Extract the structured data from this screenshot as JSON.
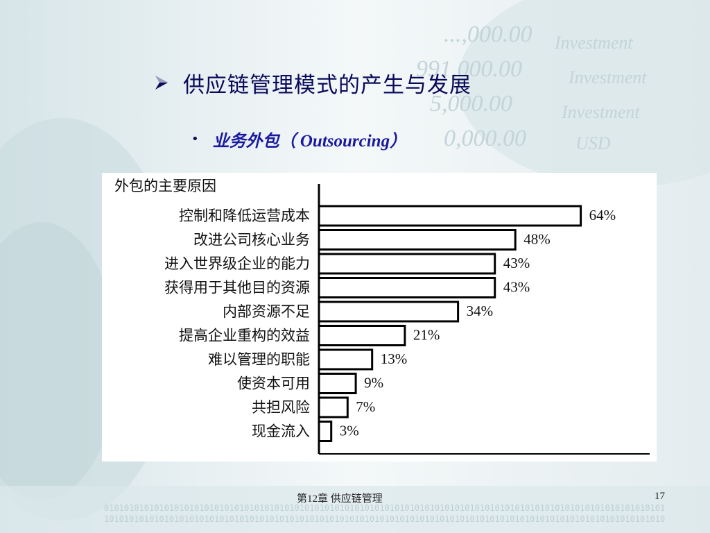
{
  "slide": {
    "title": "供应链管理模式的产生与发展",
    "bullet_cn": "业务外包（",
    "bullet_en": " Outsourcing",
    "bullet_close": "）",
    "footer_text": "第12章  供应链管理",
    "page_number": "17"
  },
  "chart_data": {
    "type": "bar",
    "orientation": "horizontal",
    "title": "外包的主要原因",
    "categories": [
      "控制和降低运营成本",
      "改进公司核心业务",
      "进入世界级企业的能力",
      "获得用于其他目的资源",
      "内部资源不足",
      "提高企业重构的效益",
      "难以管理的职能",
      "使资本可用",
      "共担风险",
      "现金流入"
    ],
    "values": [
      64,
      48,
      43,
      43,
      34,
      21,
      13,
      9,
      7,
      3
    ],
    "value_labels": [
      "64%",
      "48%",
      "43%",
      "43%",
      "34%",
      "21%",
      "13%",
      "9%",
      "7%",
      "3%"
    ],
    "xlim": [
      0,
      100
    ],
    "unit": "%",
    "grid": false,
    "legend": "none"
  },
  "colors": {
    "title": "#0a0a5a",
    "bullet": "#1a1aa0",
    "bar_fill": "#ffffff",
    "bar_stroke": "#000000",
    "background": "#eef4f5"
  },
  "icons": {
    "title_marker": "arrow-right-icon",
    "bullet_marker": "bullet-dot-icon"
  }
}
